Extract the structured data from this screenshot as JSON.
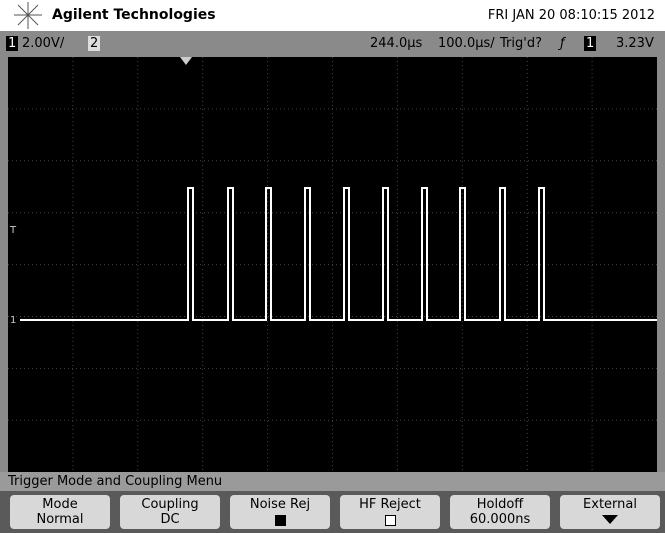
{
  "header": {
    "brand": "Agilent Technologies",
    "datetime": "FRI JAN 20 08:10:15 2012"
  },
  "status": {
    "ch1": "1",
    "ch1_scale": "2.00V/",
    "ch2": "2",
    "delay": "244.0µs",
    "timebase": "100.0µs/",
    "trigger_state": "Trig'd?",
    "edge": "ƒ",
    "trigger_source": "1",
    "trigger_level": "3.23V"
  },
  "markers": {
    "trigger": "T",
    "ch1": "1"
  },
  "menu": {
    "title": "Trigger Mode and Coupling Menu",
    "buttons": [
      {
        "label": "Mode",
        "value": "Normal"
      },
      {
        "label": "Coupling",
        "value": "DC"
      },
      {
        "label": "Noise Rej"
      },
      {
        "label": "HF Reject"
      },
      {
        "label": "Holdoff",
        "value": "60.000ns"
      },
      {
        "label": "External"
      }
    ]
  }
}
